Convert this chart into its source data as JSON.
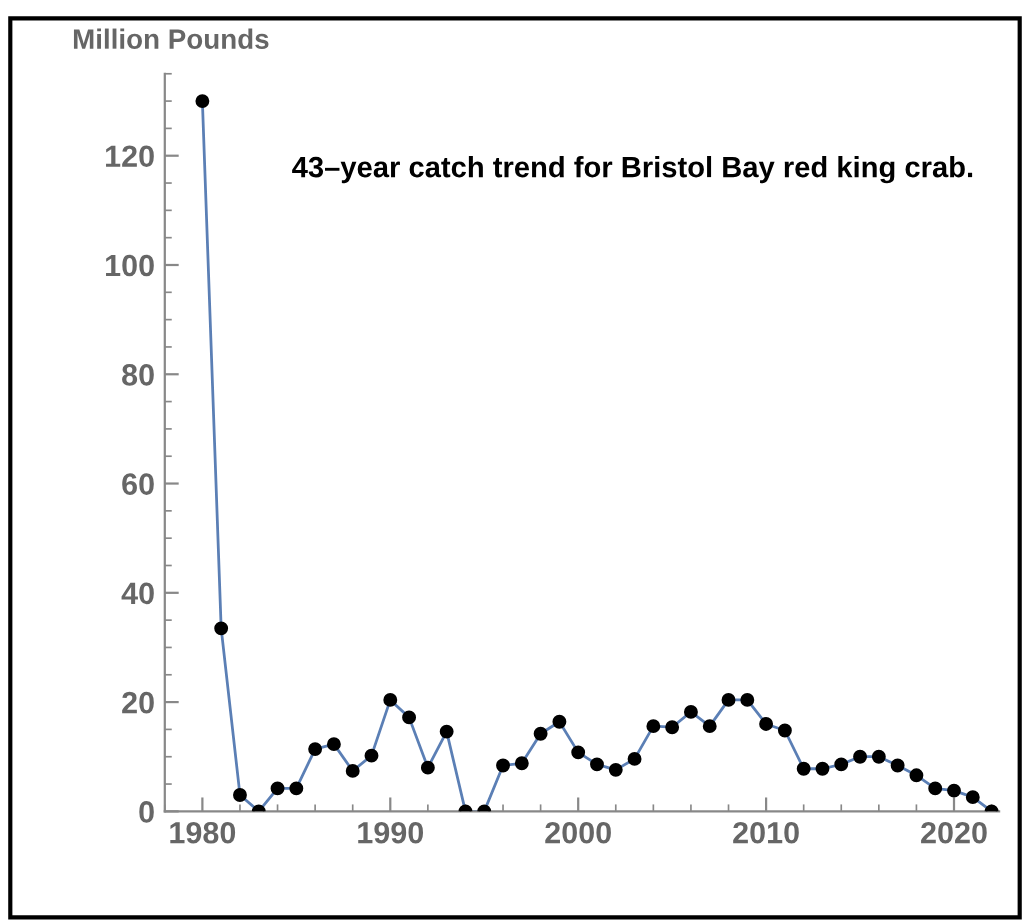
{
  "chart_data": {
    "type": "line",
    "title": "43–year catch trend for Bristol Bay red king crab.",
    "ylabel": "Million Pounds",
    "x": [
      1980,
      1981,
      1982,
      1983,
      1984,
      1985,
      1986,
      1987,
      1988,
      1989,
      1990,
      1991,
      1992,
      1993,
      1994,
      1995,
      1996,
      1997,
      1998,
      1999,
      2000,
      2001,
      2002,
      2003,
      2004,
      2005,
      2006,
      2007,
      2008,
      2009,
      2010,
      2011,
      2012,
      2013,
      2014,
      2015,
      2016,
      2017,
      2018,
      2019,
      2020,
      2021,
      2022
    ],
    "series": [
      {
        "color": "#5b7fb5",
        "values": [
          130,
          33.5,
          3,
          0,
          4.2,
          4.2,
          11.4,
          12.3,
          7.4,
          10.2,
          20.4,
          17.2,
          8,
          14.6,
          0,
          0,
          8.4,
          8.8,
          14.2,
          16.4,
          10.8,
          8.6,
          7.6,
          9.6,
          15.6,
          15.4,
          18.2,
          15.6,
          20.4,
          20.4,
          16,
          14.8,
          7.8,
          7.8,
          8.6,
          10,
          10,
          8.4,
          6.6,
          4.2,
          3.8,
          2.6,
          0
        ]
      }
    ],
    "marker": "circle",
    "line_style": "solid",
    "grid": false,
    "xlim": [
      1978,
      2022.4
    ],
    "xticks": [
      1980,
      1990,
      2000,
      2010,
      2020
    ],
    "ylim": [
      0,
      135
    ],
    "yticks": [
      0,
      20,
      40,
      60,
      80,
      100,
      120
    ]
  }
}
